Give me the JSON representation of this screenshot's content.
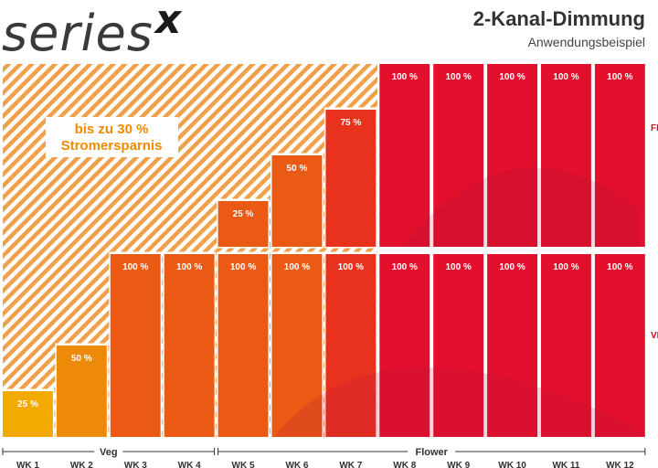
{
  "brand": {
    "text": "series",
    "x": "x"
  },
  "header": {
    "title": "2-Kanal-Dimmung",
    "subtitle": "Anwendungsbeispiel"
  },
  "callout": {
    "line1": "bis zu 30 %",
    "line2": "Stromersparnis"
  },
  "side_labels": {
    "flower": "FLOWER",
    "veg": "VEG"
  },
  "colors": {
    "yellow": "#f2a900",
    "orange": "#ea5a14",
    "red": "#e2102c",
    "deep_red": "#c8153a",
    "callout_text": "#f08a00"
  },
  "chart_data": {
    "type": "bar",
    "categories": [
      "WK 1",
      "WK 2",
      "WK 3",
      "WK 4",
      "WK 5",
      "WK 6",
      "WK 7",
      "WK 8",
      "WK 9",
      "WK 10",
      "WK 11",
      "WK 12"
    ],
    "series": [
      {
        "name": "VEG",
        "values": [
          25,
          50,
          100,
          100,
          100,
          100,
          100,
          100,
          100,
          100,
          100,
          100
        ]
      },
      {
        "name": "FLOWER",
        "values": [
          0,
          0,
          0,
          0,
          25,
          50,
          75,
          100,
          100,
          100,
          100,
          100
        ]
      }
    ],
    "phases": [
      {
        "label": "Veg",
        "start": 0,
        "end": 3
      },
      {
        "label": "Flower",
        "start": 4,
        "end": 11
      }
    ],
    "ylim": [
      0,
      100
    ]
  }
}
